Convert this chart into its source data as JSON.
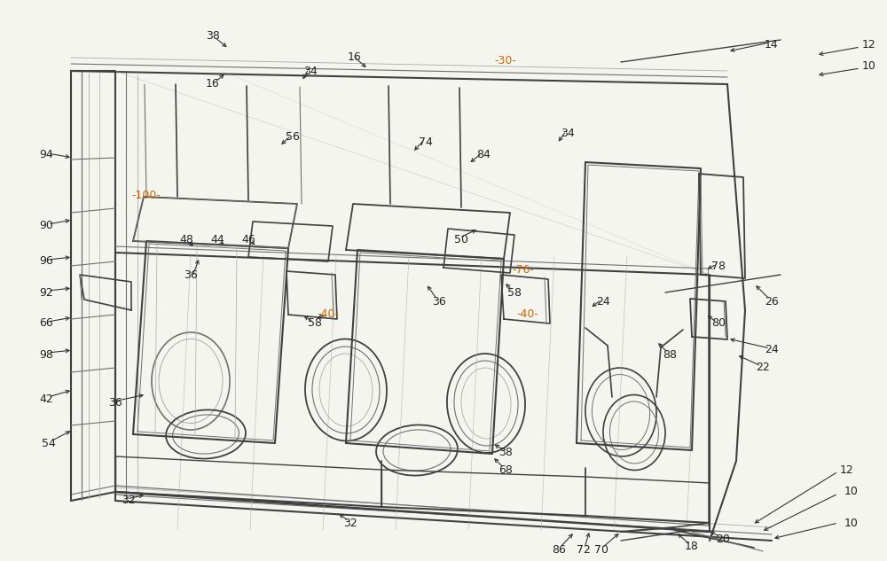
{
  "bg_color": "#f5f5f0",
  "lc_dark": "#404040",
  "lc_med": "#707070",
  "lc_light": "#aaaaaa",
  "lc_green": "#558855",
  "lc_pink": "#cc8888",
  "orange": "#cc6600",
  "fig_width": 10.0,
  "fig_height": 6.33
}
